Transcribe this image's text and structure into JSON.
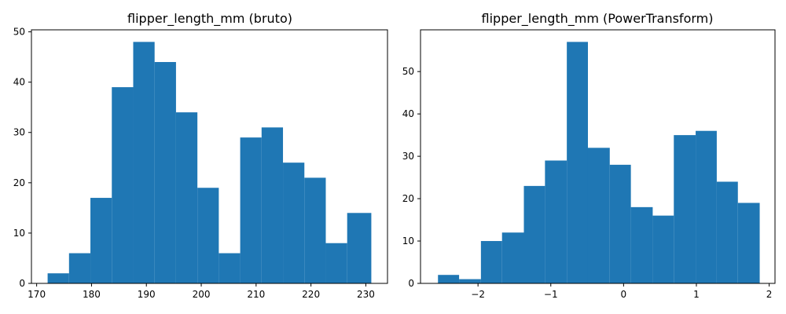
{
  "chart_data": [
    {
      "type": "bar",
      "title": "flipper_length_mm (bruto)",
      "xlabel": "",
      "ylabel": "",
      "xlim": [
        169.05,
        233.95
      ],
      "ylim": [
        0,
        50.4
      ],
      "grid": false,
      "bin_edges": [
        172.0,
        175.9,
        179.8,
        183.7,
        187.6,
        191.5,
        195.4,
        199.3,
        203.2,
        207.1,
        211.0,
        214.9,
        218.8,
        222.7,
        226.6,
        231.0
      ],
      "values": [
        2,
        6,
        17,
        39,
        48,
        44,
        34,
        19,
        6,
        29,
        31,
        24,
        21,
        8,
        14
      ],
      "xticks": [
        170,
        180,
        190,
        200,
        210,
        220,
        230
      ],
      "xtick_labels": [
        "170",
        "180",
        "190",
        "200",
        "210",
        "220",
        "230"
      ],
      "yticks": [
        0,
        10,
        20,
        30,
        40,
        50
      ],
      "ytick_labels": [
        "0",
        "10",
        "20",
        "30",
        "40",
        "50"
      ],
      "color": "#1f77b4"
    },
    {
      "type": "bar",
      "title": "flipper_length_mm (PowerTransform)",
      "xlabel": "",
      "ylabel": "",
      "xlim": [
        -2.79,
        2.08
      ],
      "ylim": [
        0,
        59.85
      ],
      "grid": false,
      "bin_edges": [
        -2.55,
        -2.26,
        -1.96,
        -1.67,
        -1.37,
        -1.08,
        -0.78,
        -0.49,
        -0.19,
        0.1,
        0.4,
        0.69,
        0.99,
        1.28,
        1.57,
        1.87
      ],
      "values": [
        2,
        1,
        10,
        12,
        23,
        29,
        57,
        32,
        28,
        18,
        16,
        35,
        36,
        24,
        19
      ],
      "xticks": [
        -2,
        -1,
        0,
        1,
        2
      ],
      "xtick_labels": [
        "−2",
        "−1",
        "0",
        "1",
        "2"
      ],
      "yticks": [
        0,
        10,
        20,
        30,
        40,
        50
      ],
      "ytick_labels": [
        "0",
        "10",
        "20",
        "30",
        "40",
        "50"
      ],
      "color": "#1f77b4"
    }
  ]
}
